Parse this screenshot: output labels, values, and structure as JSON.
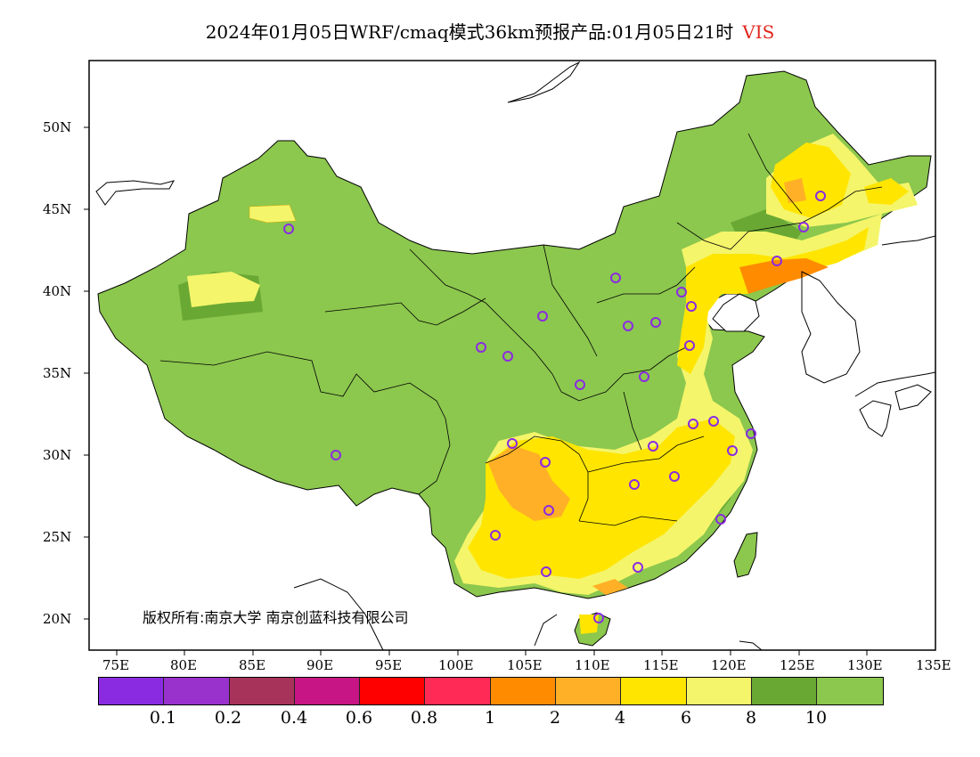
{
  "title": {
    "main": "2024年01月05日WRF/cmaq模式36km预报产品:01月05日21时",
    "variable": "VIS",
    "variable_color": "#e0281e"
  },
  "axes": {
    "lat_labels": [
      "50N",
      "45N",
      "40N",
      "35N",
      "30N",
      "25N",
      "20N"
    ],
    "lon_labels": [
      "75E",
      "80E",
      "85E",
      "90E",
      "95E",
      "100E",
      "105E",
      "110E",
      "115E",
      "120E",
      "125E",
      "130E",
      "135E"
    ],
    "lat_range": [
      18,
      54
    ],
    "lon_range": [
      73,
      135
    ]
  },
  "copyright": "版权所有:南京大学  南京创蓝科技有限公司",
  "colorbar": {
    "colors": [
      "#8a2be2",
      "#9932cc",
      "#a8335a",
      "#c71585",
      "#ff0000",
      "#ff2a55",
      "#ff8c00",
      "#ffb027",
      "#ffe500",
      "#f4f56a",
      "#6aa834",
      "#8cc74e"
    ],
    "tick_labels": [
      "0.1",
      "0.2",
      "0.4",
      "0.6",
      "0.8",
      "1",
      "2",
      "4",
      "6",
      "8",
      "10"
    ]
  },
  "stations_color": "#8a2be2",
  "base_color": "#8cc74e"
}
